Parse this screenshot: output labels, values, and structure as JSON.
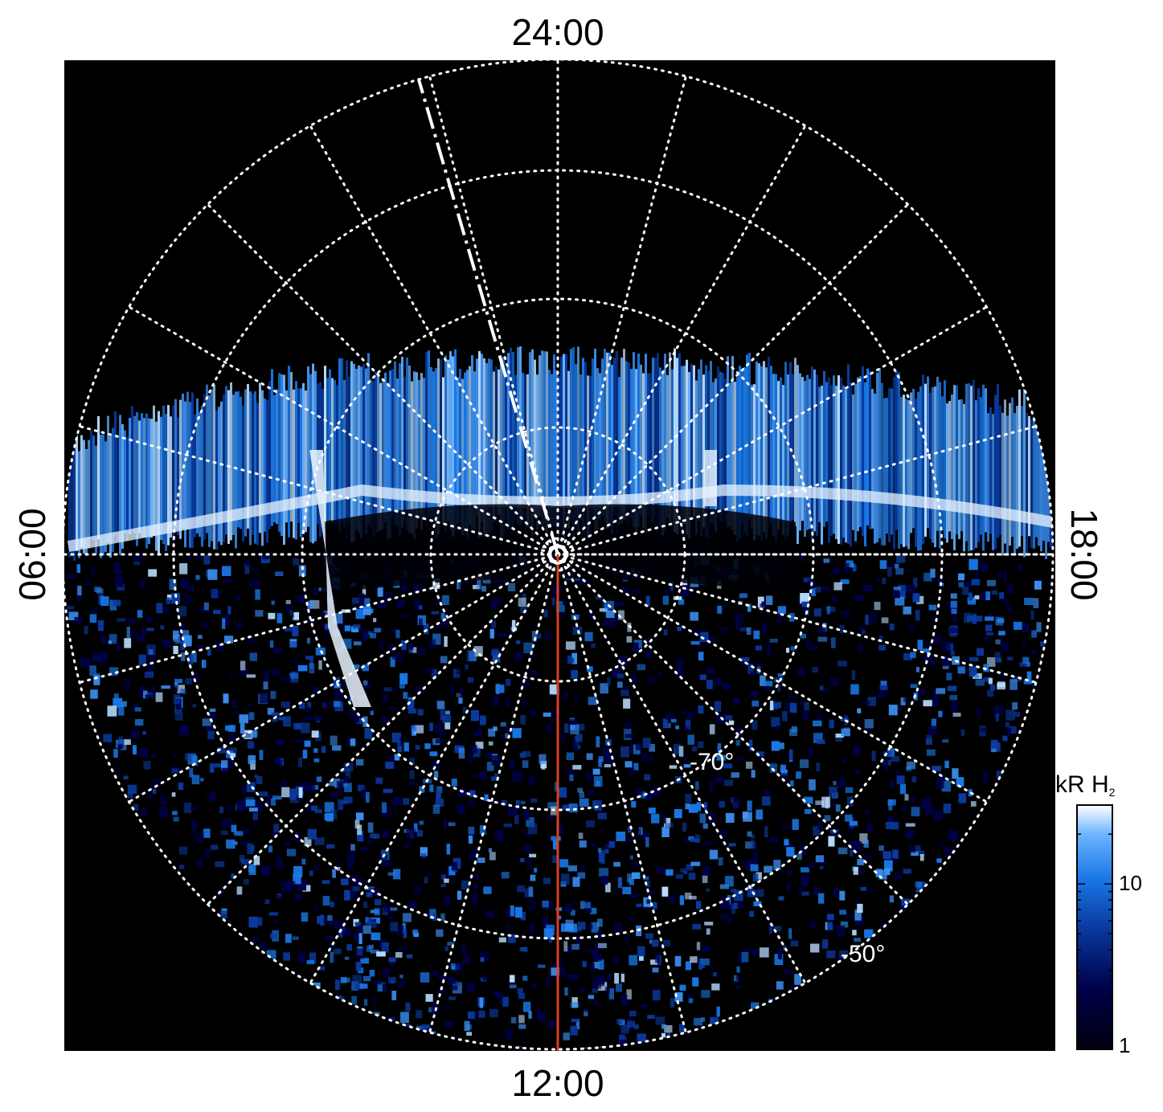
{
  "local_time_labels": {
    "top": "24:00",
    "bottom": "12:00",
    "left": "06:00",
    "right": "18:00"
  },
  "latitude_labels": [
    {
      "text": "-70°",
      "latitude": -70
    },
    {
      "text": "-50°",
      "latitude": -50
    }
  ],
  "colorbar": {
    "title_main": "kR H",
    "title_sub": "2",
    "ticks": [
      {
        "label": "10",
        "value": 10
      },
      {
        "label": "1",
        "value": 1
      }
    ],
    "scale": "log",
    "range": [
      1,
      30
    ],
    "colors": [
      "#000010",
      "#00004a",
      "#0a3aa0",
      "#1a78e6",
      "#6cb4ff",
      "#ffffff"
    ]
  },
  "colors": {
    "background": "#000000",
    "grid": "#ffffff",
    "meridian_line": "#d9401c",
    "aurora": "#3b8ef0"
  }
}
